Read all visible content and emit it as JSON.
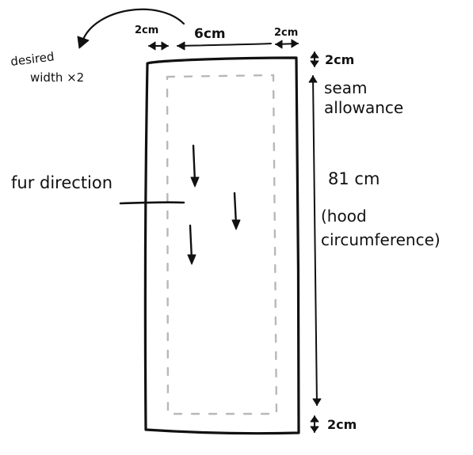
{
  "labels": {
    "margin_left": "2cm",
    "panel_width": "6cm",
    "margin_right": "2cm",
    "margin_top": "2cm",
    "seam_allowance_line1": "seam",
    "seam_allowance_line2": "allowance",
    "length_value": "81 cm",
    "length_note_line1": "(hood",
    "length_note_line2": "circumference)",
    "margin_bottom": "2cm",
    "width_note_line1": "desired",
    "width_note_line2": "width ×2",
    "fur_direction": "fur direction"
  }
}
